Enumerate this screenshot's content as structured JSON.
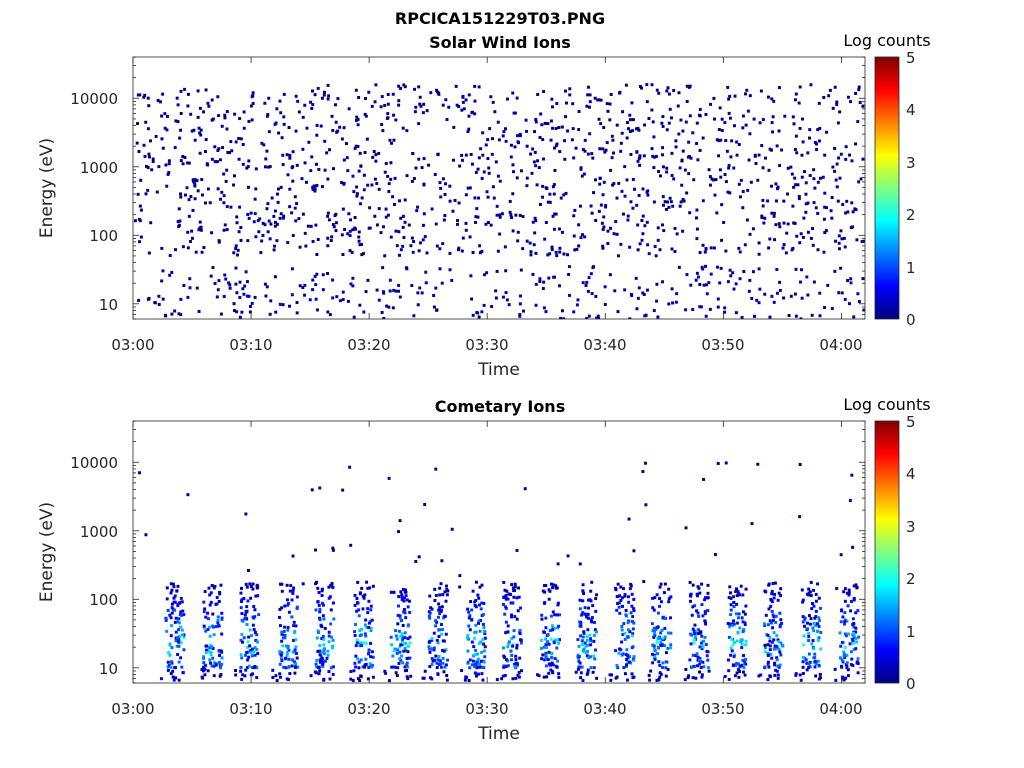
{
  "figure": {
    "title": "RPCICA151229T03.PNG"
  },
  "colormap": {
    "name": "jet",
    "stops": [
      "#00007f",
      "#0000ff",
      "#007fff",
      "#00ffff",
      "#7fff7f",
      "#ffff00",
      "#ff7f00",
      "#ff0000",
      "#7f0000"
    ]
  },
  "chart_data": [
    {
      "type": "heatmap",
      "title": "Solar Wind Ions",
      "xlabel": "Time",
      "ylabel": "Energy (eV)",
      "x_ticks": [
        "03:00",
        "03:10",
        "03:20",
        "03:30",
        "03:40",
        "03:50",
        "04:00"
      ],
      "x_range": [
        "03:00",
        "04:02"
      ],
      "y_ticks": [
        "10",
        "100",
        "1000",
        "10000"
      ],
      "y_scale": "log",
      "ylim": [
        6,
        40000
      ],
      "colorbar": {
        "label": "Log counts",
        "ticks": [
          "0",
          "1",
          "2",
          "3",
          "4",
          "5"
        ],
        "range": [
          0,
          5
        ]
      },
      "description": "sparse single-count pixels (log counts ≈ 0) scattered from ~60 eV to ~15000 eV across the full time range, with a dense band of low-count pixels around 10–30 eV"
    },
    {
      "type": "heatmap",
      "title": "Cometary Ions",
      "xlabel": "Time",
      "ylabel": "Energy (eV)",
      "x_ticks": [
        "03:00",
        "03:10",
        "03:20",
        "03:30",
        "03:40",
        "03:50",
        "04:00"
      ],
      "x_range": [
        "03:00",
        "04:02"
      ],
      "y_ticks": [
        "10",
        "100",
        "1000",
        "10000"
      ],
      "y_scale": "log",
      "ylim": [
        6,
        40000
      ],
      "colorbar": {
        "label": "Log counts",
        "ticks": [
          "0",
          "1",
          "2",
          "3",
          "4",
          "5"
        ],
        "range": [
          0,
          5
        ]
      },
      "description": "periodic bursts roughly every 3 minutes, concentrated between ~10 and ~150 eV with peak log counts ≈ 1.5–2, plus isolated single-count pixels up to ~10000 eV"
    }
  ]
}
